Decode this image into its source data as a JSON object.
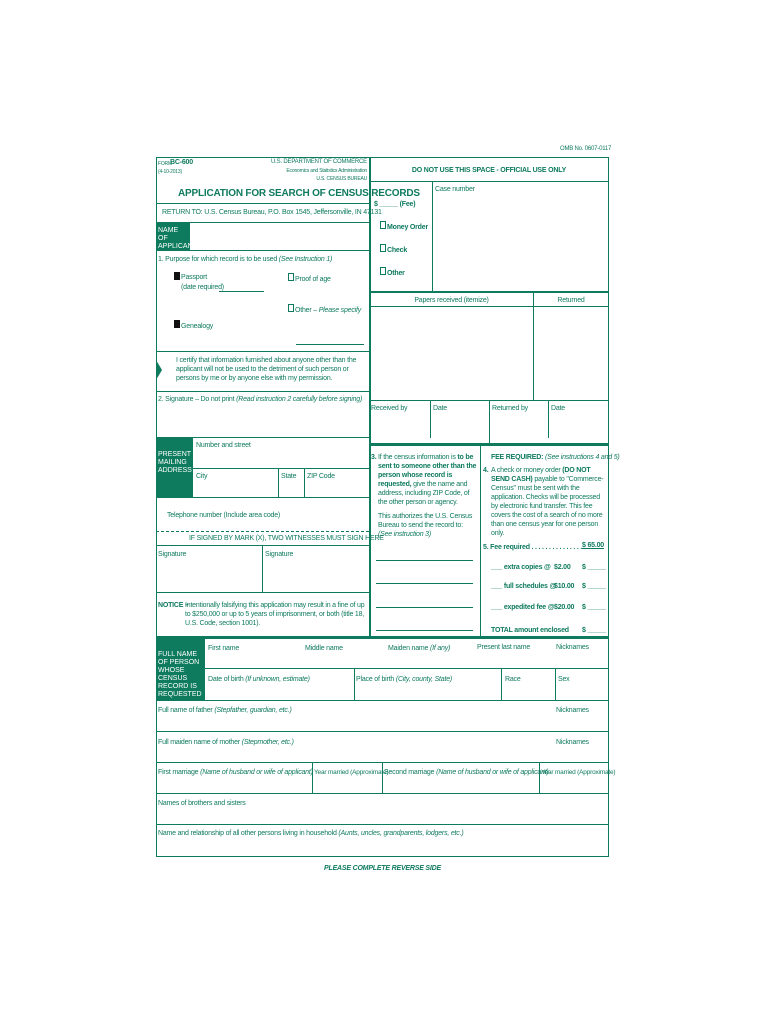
{
  "omb": "OMB No. 0607-0117",
  "header": {
    "form_prefix": "FORM",
    "form_no": "BC-600",
    "form_date": "(4-10-2013)",
    "dept": "U.S. DEPARTMENT OF COMMERCE",
    "admin": "Economics and Statistics Administration",
    "bureau": "U.S. CENSUS BUREAU",
    "title": "APPLICATION FOR SEARCH OF CENSUS RECORDS",
    "return_to": "RETURN TO: U.S. Census Bureau, P.O. Box 1545, Jeffersonville, IN 47131"
  },
  "applicant": {
    "tab": "NAME OF APPLICANT"
  },
  "purpose": {
    "label": "1.  Purpose for which record is to be used",
    "hint": "(See Instruction 1)",
    "passport": "Passport",
    "date_required": "(date required)",
    "proof_of_age": "Proof of age",
    "other": "Other –",
    "other_hint": "Please specify",
    "genealogy": "Genealogy",
    "passport_checked": true,
    "genealogy_checked": true,
    "proof_checked": false,
    "other_checked": false
  },
  "certify": "I certify that information furnished about anyone other than the applicant will not be used to the detriment of such person or persons by me or by anyone else with my permission.",
  "signature": {
    "label": "2.  Signature – Do not print",
    "hint": "(Read instruction 2 carefully before signing)"
  },
  "address": {
    "tab": "PRESENT MAILING ADDRESS",
    "street": "Number and street",
    "city": "City",
    "state": "State",
    "zip": "ZIP Code",
    "phone": "Telephone number (Include area code)"
  },
  "witness": {
    "title": "IF SIGNED BY MARK (X), TWO WITNESSES MUST SIGN HERE",
    "sig1": "Signature",
    "sig2": "Signature"
  },
  "notice": {
    "label": "NOTICE –",
    "text": "Intentionally falsifying this application may result in a fine of up to $250,000 or up to 5 years of imprisonment, or both (title 18, U.S. Code, section 1001)."
  },
  "official": {
    "title": "DO NOT USE THIS SPACE - OFFICIAL USE ONLY",
    "fee": "$ _____ (Fee)",
    "money_order": "Money Order",
    "check": "Check",
    "other": "Other",
    "case_number": "Case number",
    "papers": "Papers received (itemize)",
    "returned": "Returned",
    "received_by": "Received by",
    "date1": "Date",
    "returned_by": "Returned by",
    "date2": "Date"
  },
  "section3": {
    "n": "3.",
    "p1": "If the census information is",
    "p1b": "to be sent to someone other than the person whose record is requested,",
    "p1c": "give the name and address, including ZIP Code, of the other person or agency.",
    "p2": "This authorizes the U.S. Census Bureau to send the record to:",
    "p2h": "(See instruction 3)"
  },
  "fees": {
    "title": "FEE REQUIRED:",
    "title_hint": "(See instructions 4 and 5)",
    "n4": "4.",
    "p4a": "A check or money order",
    "p4b": "(DO NOT SEND CASH)",
    "p4c": "payable to \"Commerce-Census\" must be sent with the application. Checks will be processed by electronic fund transfer. This fee covers the cost of a search of no more than one census year for one person only.",
    "fee_required": "5.  Fee required . . . . . . . . . . . . . . .",
    "fee_amount": "$ 65.00",
    "extra": "___ extra copies @",
    "extra_price": "$2.00",
    "full": "___ full schedules @",
    "full_price": "$10.00",
    "expedited": "___ expedited fee @",
    "expedited_price": "$20.00",
    "total": "TOTAL amount enclosed",
    "blank": "$ _____"
  },
  "person": {
    "tab": "FULL NAME OF PERSON WHOSE CENSUS RECORD IS REQUESTED",
    "first": "First name",
    "middle": "Middle name",
    "maiden": "Maiden name",
    "maiden_hint": "(If any)",
    "present_last": "Present last name",
    "nicknames": "Nicknames",
    "dob": "Date of birth",
    "dob_hint": "(If unknown, estimate)",
    "pob": "Place of birth",
    "pob_hint": "(City, county, State)",
    "race": "Race",
    "sex": "Sex"
  },
  "family": {
    "father": "Full name of father",
    "father_hint": "(Stepfather, guardian, etc.)",
    "nicknames": "Nicknames",
    "mother": "Full maiden name of mother",
    "mother_hint": "(Stepmother, etc.)",
    "first_marriage": "First marriage",
    "marriage_hint": "(Name of husband or wife of applicant)",
    "year_married": "Year married (Approximate)",
    "second_marriage": "Second marriage",
    "siblings": "Names of brothers and sisters",
    "household": "Name and relationship of all other persons living in household",
    "household_hint": "(Aunts, uncles, grandparents, lodgers, etc.)"
  },
  "footer": "PLEASE COMPLETE REVERSE SIDE"
}
